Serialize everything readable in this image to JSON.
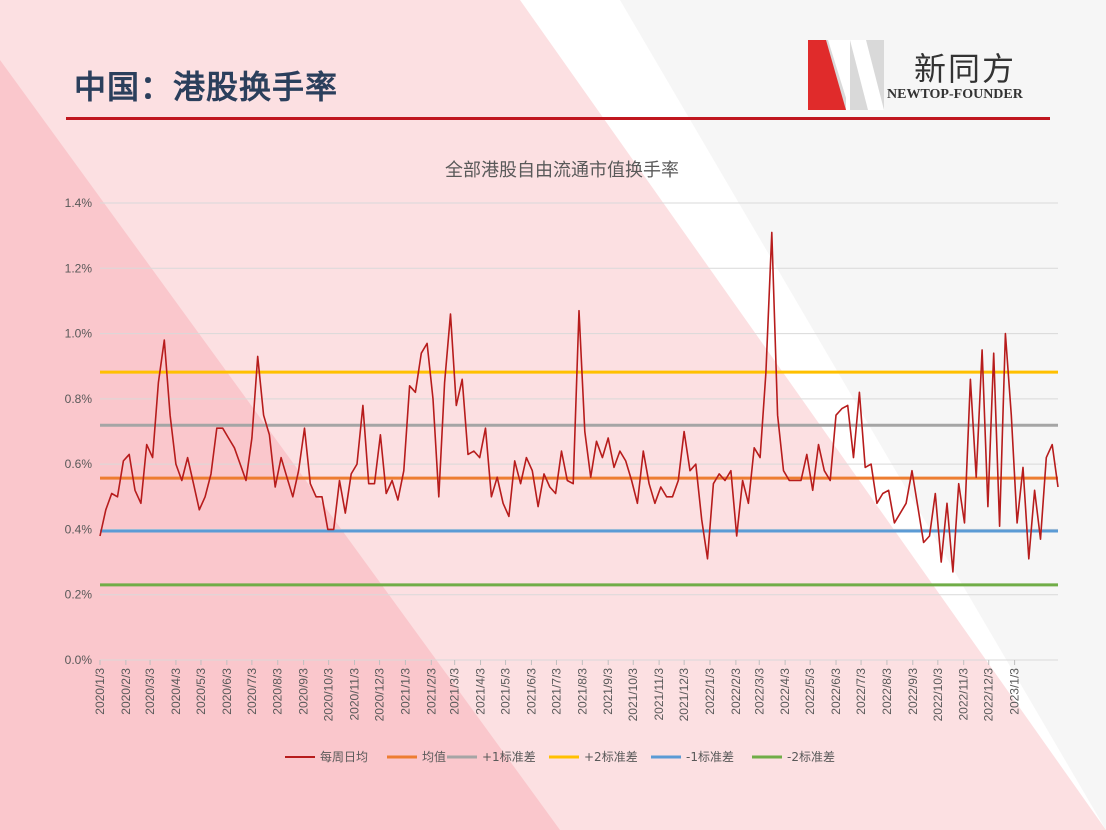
{
  "page": {
    "title": "中国：港股换手率",
    "logo_cn": "新同方",
    "logo_en": "NEWTOP-FOUNDER",
    "accent_color": "#c0171f"
  },
  "chart_data": {
    "type": "line",
    "title": "全部港股自由流通市值换手率",
    "xlabel": "",
    "ylabel": "",
    "ylim": [
      0,
      1.4
    ],
    "y_unit": "%",
    "yticks": [
      "0.0%",
      "0.2%",
      "0.4%",
      "0.6%",
      "0.8%",
      "1.0%",
      "1.2%",
      "1.4%"
    ],
    "x_ticks": [
      "2020/1/3",
      "2020/2/3",
      "2020/3/3",
      "2020/4/3",
      "2020/5/3",
      "2020/6/3",
      "2020/7/3",
      "2020/8/3",
      "2020/9/3",
      "2020/10/3",
      "2020/11/3",
      "2020/12/3",
      "2021/1/3",
      "2021/2/3",
      "2021/3/3",
      "2021/4/3",
      "2021/5/3",
      "2021/6/3",
      "2021/7/3",
      "2021/8/3",
      "2021/9/3",
      "2021/10/3",
      "2021/11/3",
      "2021/12/3",
      "2022/1/3",
      "2022/2/3",
      "2022/3/3",
      "2022/4/3",
      "2022/5/3",
      "2022/6/3",
      "2022/7/3",
      "2022/8/3",
      "2022/9/3",
      "2022/10/3",
      "2022/11/3",
      "2022/12/3",
      "2023/1/3"
    ],
    "grid": true,
    "legend_position": "bottom",
    "series": [
      {
        "name": "每周日均",
        "color": "#b71c1c",
        "points": [
          [
            "2020/1/3",
            0.38
          ],
          [
            "2020/1/10",
            0.46
          ],
          [
            "2020/1/17",
            0.51
          ],
          [
            "2020/1/24",
            0.5
          ],
          [
            "2020/1/31",
            0.61
          ],
          [
            "2020/2/7",
            0.63
          ],
          [
            "2020/2/14",
            0.52
          ],
          [
            "2020/2/21",
            0.48
          ],
          [
            "2020/2/28",
            0.66
          ],
          [
            "2020/3/6",
            0.62
          ],
          [
            "2020/3/13",
            0.85
          ],
          [
            "2020/3/20",
            0.98
          ],
          [
            "2020/3/27",
            0.75
          ],
          [
            "2020/4/3",
            0.6
          ],
          [
            "2020/4/10",
            0.55
          ],
          [
            "2020/4/17",
            0.62
          ],
          [
            "2020/4/24",
            0.54
          ],
          [
            "2020/5/1",
            0.46
          ],
          [
            "2020/5/8",
            0.5
          ],
          [
            "2020/5/15",
            0.57
          ],
          [
            "2020/5/22",
            0.71
          ],
          [
            "2020/5/29",
            0.71
          ],
          [
            "2020/6/5",
            0.68
          ],
          [
            "2020/6/12",
            0.65
          ],
          [
            "2020/6/19",
            0.6
          ],
          [
            "2020/6/26",
            0.55
          ],
          [
            "2020/7/3",
            0.68
          ],
          [
            "2020/7/10",
            0.93
          ],
          [
            "2020/7/17",
            0.75
          ],
          [
            "2020/7/24",
            0.69
          ],
          [
            "2020/7/31",
            0.53
          ],
          [
            "2020/8/7",
            0.62
          ],
          [
            "2020/8/14",
            0.56
          ],
          [
            "2020/8/21",
            0.5
          ],
          [
            "2020/8/28",
            0.58
          ],
          [
            "2020/9/4",
            0.71
          ],
          [
            "2020/9/11",
            0.54
          ],
          [
            "2020/9/18",
            0.5
          ],
          [
            "2020/9/25",
            0.5
          ],
          [
            "2020/10/2",
            0.4
          ],
          [
            "2020/10/9",
            0.4
          ],
          [
            "2020/10/16",
            0.55
          ],
          [
            "2020/10/23",
            0.45
          ],
          [
            "2020/10/30",
            0.57
          ],
          [
            "2020/11/6",
            0.6
          ],
          [
            "2020/11/13",
            0.78
          ],
          [
            "2020/11/20",
            0.54
          ],
          [
            "2020/11/27",
            0.54
          ],
          [
            "2020/12/4",
            0.69
          ],
          [
            "2020/12/11",
            0.51
          ],
          [
            "2020/12/18",
            0.55
          ],
          [
            "2020/12/25",
            0.49
          ],
          [
            "2021/1/1",
            0.58
          ],
          [
            "2021/1/8",
            0.84
          ],
          [
            "2021/1/15",
            0.82
          ],
          [
            "2021/1/22",
            0.94
          ],
          [
            "2021/1/29",
            0.97
          ],
          [
            "2021/2/5",
            0.8
          ],
          [
            "2021/2/12",
            0.5
          ],
          [
            "2021/2/19",
            0.85
          ],
          [
            "2021/2/26",
            1.06
          ],
          [
            "2021/3/5",
            0.78
          ],
          [
            "2021/3/12",
            0.86
          ],
          [
            "2021/3/19",
            0.63
          ],
          [
            "2021/3/26",
            0.64
          ],
          [
            "2021/4/2",
            0.62
          ],
          [
            "2021/4/9",
            0.71
          ],
          [
            "2021/4/16",
            0.5
          ],
          [
            "2021/4/23",
            0.56
          ],
          [
            "2021/4/30",
            0.48
          ],
          [
            "2021/5/7",
            0.44
          ],
          [
            "2021/5/14",
            0.61
          ],
          [
            "2021/5/21",
            0.54
          ],
          [
            "2021/5/28",
            0.62
          ],
          [
            "2021/6/4",
            0.58
          ],
          [
            "2021/6/11",
            0.47
          ],
          [
            "2021/6/18",
            0.57
          ],
          [
            "2021/6/25",
            0.53
          ],
          [
            "2021/7/2",
            0.51
          ],
          [
            "2021/7/9",
            0.64
          ],
          [
            "2021/7/16",
            0.55
          ],
          [
            "2021/7/23",
            0.54
          ],
          [
            "2021/7/30",
            1.07
          ],
          [
            "2021/8/6",
            0.7
          ],
          [
            "2021/8/13",
            0.56
          ],
          [
            "2021/8/20",
            0.67
          ],
          [
            "2021/8/27",
            0.62
          ],
          [
            "2021/9/3",
            0.68
          ],
          [
            "2021/9/10",
            0.59
          ],
          [
            "2021/9/17",
            0.64
          ],
          [
            "2021/9/24",
            0.61
          ],
          [
            "2021/10/1",
            0.55
          ],
          [
            "2021/10/8",
            0.48
          ],
          [
            "2021/10/15",
            0.64
          ],
          [
            "2021/10/22",
            0.54
          ],
          [
            "2021/10/29",
            0.48
          ],
          [
            "2021/11/5",
            0.53
          ],
          [
            "2021/11/12",
            0.5
          ],
          [
            "2021/11/19",
            0.5
          ],
          [
            "2021/11/26",
            0.55
          ],
          [
            "2021/12/3",
            0.7
          ],
          [
            "2021/12/10",
            0.58
          ],
          [
            "2021/12/17",
            0.6
          ],
          [
            "2021/12/24",
            0.43
          ],
          [
            "2021/12/31",
            0.31
          ],
          [
            "2022/1/7",
            0.54
          ],
          [
            "2022/1/14",
            0.57
          ],
          [
            "2022/1/21",
            0.55
          ],
          [
            "2022/1/28",
            0.58
          ],
          [
            "2022/2/4",
            0.38
          ],
          [
            "2022/2/11",
            0.55
          ],
          [
            "2022/2/18",
            0.48
          ],
          [
            "2022/2/25",
            0.65
          ],
          [
            "2022/3/4",
            0.62
          ],
          [
            "2022/3/11",
            0.88
          ],
          [
            "2022/3/18",
            1.31
          ],
          [
            "2022/3/25",
            0.75
          ],
          [
            "2022/4/1",
            0.58
          ],
          [
            "2022/4/8",
            0.55
          ],
          [
            "2022/4/15",
            0.55
          ],
          [
            "2022/4/22",
            0.55
          ],
          [
            "2022/4/29",
            0.63
          ],
          [
            "2022/5/6",
            0.52
          ],
          [
            "2022/5/13",
            0.66
          ],
          [
            "2022/5/20",
            0.58
          ],
          [
            "2022/5/27",
            0.55
          ],
          [
            "2022/6/3",
            0.75
          ],
          [
            "2022/6/10",
            0.77
          ],
          [
            "2022/6/17",
            0.78
          ],
          [
            "2022/6/24",
            0.62
          ],
          [
            "2022/7/1",
            0.82
          ],
          [
            "2022/7/8",
            0.59
          ],
          [
            "2022/7/15",
            0.6
          ],
          [
            "2022/7/22",
            0.48
          ],
          [
            "2022/7/29",
            0.51
          ],
          [
            "2022/8/5",
            0.52
          ],
          [
            "2022/8/12",
            0.42
          ],
          [
            "2022/8/19",
            0.45
          ],
          [
            "2022/8/26",
            0.48
          ],
          [
            "2022/9/2",
            0.58
          ],
          [
            "2022/9/9",
            0.47
          ],
          [
            "2022/9/16",
            0.36
          ],
          [
            "2022/9/23",
            0.38
          ],
          [
            "2022/9/30",
            0.51
          ],
          [
            "2022/10/7",
            0.3
          ],
          [
            "2022/10/14",
            0.48
          ],
          [
            "2022/10/21",
            0.27
          ],
          [
            "2022/10/28",
            0.54
          ],
          [
            "2022/11/4",
            0.42
          ],
          [
            "2022/11/11",
            0.86
          ],
          [
            "2022/11/18",
            0.56
          ],
          [
            "2022/11/25",
            0.95
          ],
          [
            "2022/12/2",
            0.47
          ],
          [
            "2022/12/9",
            0.94
          ],
          [
            "2022/12/16",
            0.41
          ],
          [
            "2022/12/23",
            1.0
          ],
          [
            "2022/12/30",
            0.75
          ],
          [
            "2023/1/6",
            0.42
          ],
          [
            "2023/1/13",
            0.59
          ],
          [
            "2023/1/20",
            0.31
          ],
          [
            "2023/1/27",
            0.52
          ],
          [
            "2023/2/3",
            0.37
          ],
          [
            "2023/2/10",
            0.62
          ],
          [
            "2023/2/17",
            0.66
          ],
          [
            "2023/2/24",
            0.53
          ]
        ]
      },
      {
        "name": "均值",
        "color": "#ed7d31",
        "value": 0.557
      },
      {
        "name": "+1标准差",
        "color": "#a5a5a5",
        "value": 0.719
      },
      {
        "name": "+2标准差",
        "color": "#ffc000",
        "value": 0.882
      },
      {
        "name": "-1标准差",
        "color": "#5b9bd5",
        "value": 0.395
      },
      {
        "name": "-2标准差",
        "color": "#70ad47",
        "value": 0.23
      }
    ]
  }
}
